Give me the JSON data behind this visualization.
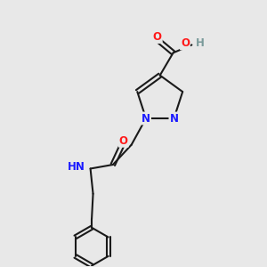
{
  "bg_color": "#e8e8e8",
  "bond_color": "#1a1a1a",
  "bond_width": 1.5,
  "atom_colors": {
    "C": "#1a1a1a",
    "N": "#1a1aff",
    "O": "#ff1a1a",
    "H": "#7a9a9a"
  },
  "font_size": 8.5,
  "fig_size": [
    3.0,
    3.0
  ],
  "dpi": 100
}
